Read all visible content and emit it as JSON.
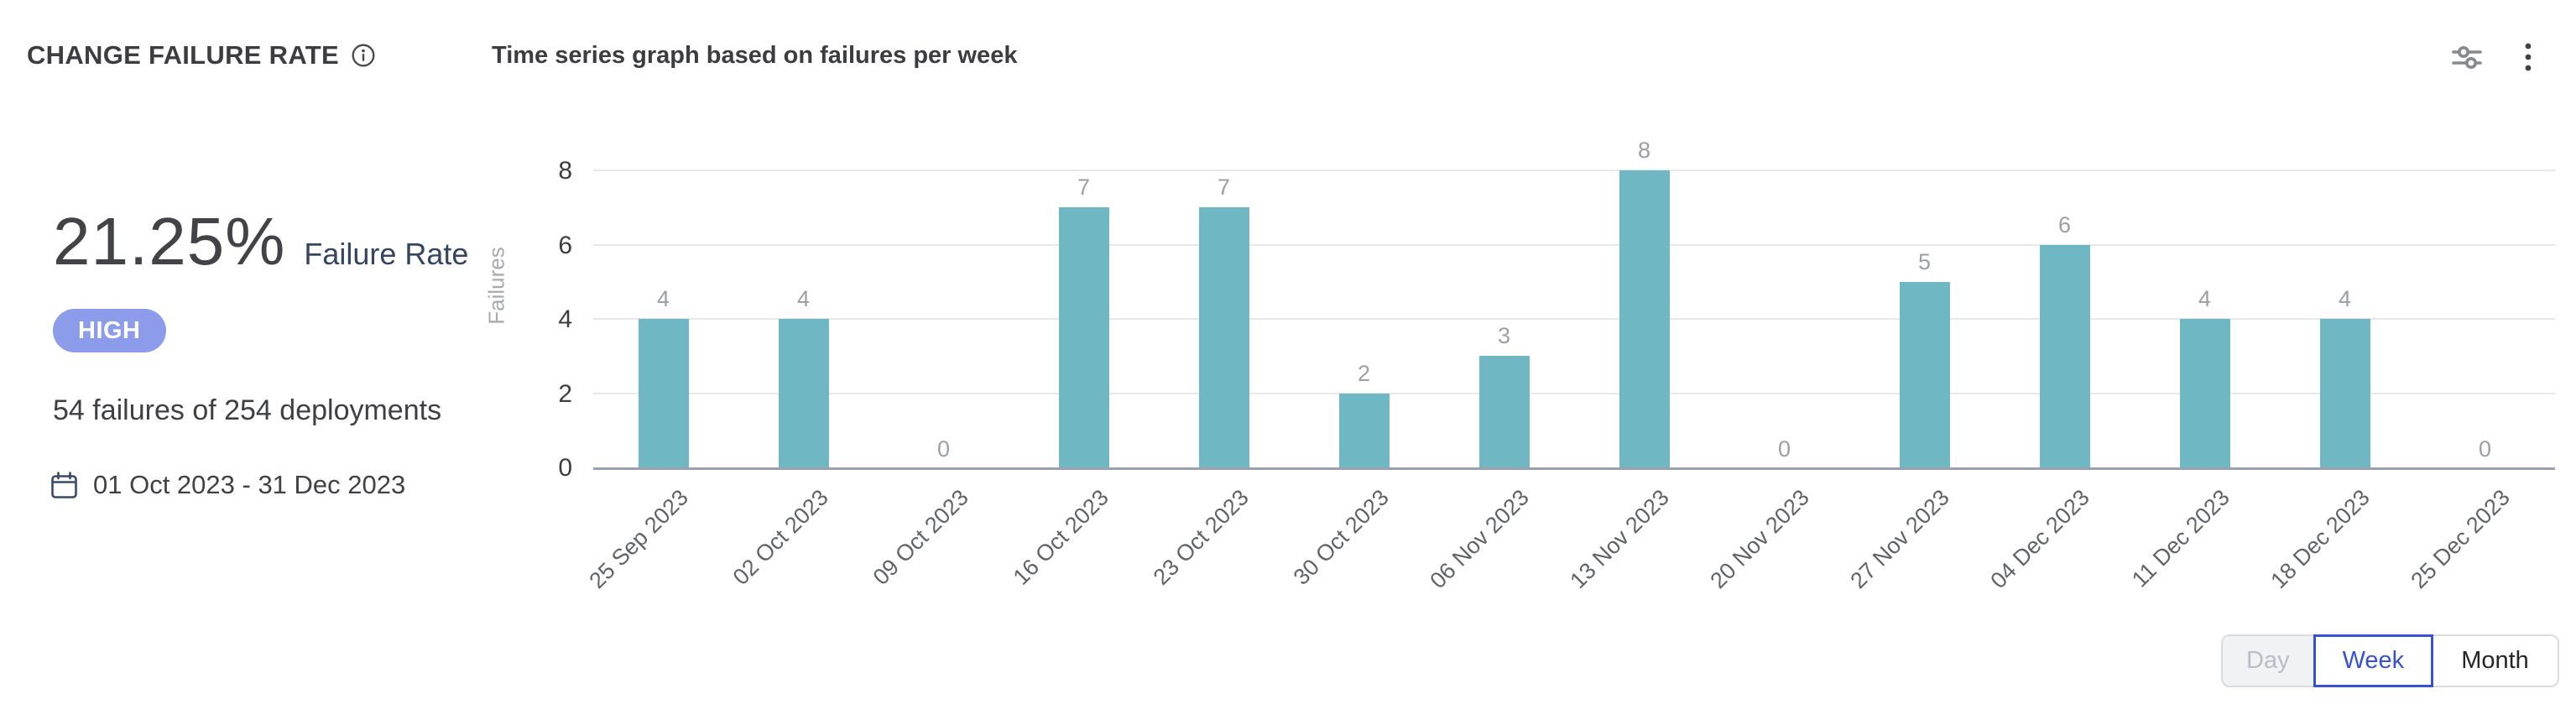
{
  "header": {
    "title": "CHANGE FAILURE RATE",
    "subtitle": "Time series graph based on failures per week"
  },
  "summary": {
    "rate_value": "21.25%",
    "rate_label": "Failure Rate",
    "severity_badge": "HIGH",
    "detail": "54 failures of 254 deployments",
    "date_range": "01 Oct 2023 - 31 Dec 2023"
  },
  "chart_data": {
    "type": "bar",
    "title": "Time series graph based on failures per week",
    "ylabel": "Failures",
    "xlabel": "",
    "ylim": [
      0,
      8
    ],
    "yticks": [
      0,
      2,
      4,
      6,
      8
    ],
    "grid": true,
    "legend": false,
    "categories": [
      "25 Sep 2023",
      "02 Oct 2023",
      "09 Oct 2023",
      "16 Oct 2023",
      "23 Oct 2023",
      "30 Oct 2023",
      "06 Nov 2023",
      "13 Nov 2023",
      "20 Nov 2023",
      "27 Nov 2023",
      "04 Dec 2023",
      "11 Dec 2023",
      "18 Dec 2023",
      "25 Dec 2023"
    ],
    "values": [
      4,
      4,
      0,
      7,
      7,
      2,
      3,
      8,
      0,
      5,
      6,
      4,
      4,
      0
    ]
  },
  "controls": {
    "granularity": [
      {
        "label": "Day",
        "state": "disabled"
      },
      {
        "label": "Week",
        "state": "selected"
      },
      {
        "label": "Month",
        "state": "default"
      }
    ]
  },
  "icons": {
    "title_info": "info-icon",
    "header_filter": "sliders-icon",
    "header_menu": "kebab-menu-icon",
    "date": "calendar-icon"
  },
  "colors": {
    "bar": "#6fb7c2",
    "badge_bg": "#8c9cea",
    "navy": "#36455f",
    "selected_blue": "#3750d4",
    "value_label": "#9b9fa4",
    "axis_label": "#606366",
    "gridline": "#e7e8ea",
    "baseline": "#99a1ae"
  }
}
